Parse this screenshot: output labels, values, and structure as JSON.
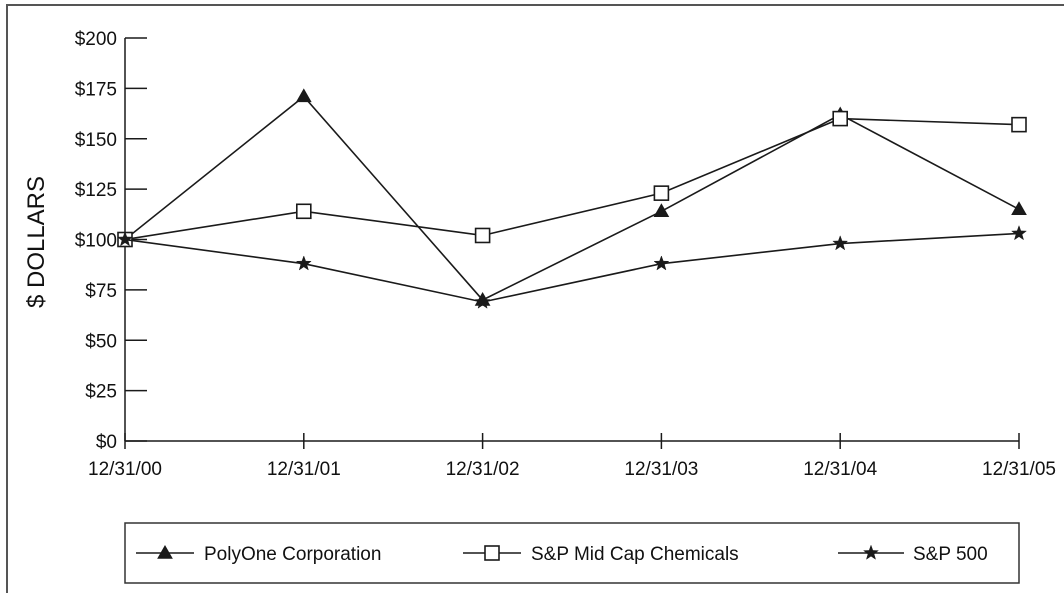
{
  "chart_data": {
    "type": "line",
    "title": "",
    "xlabel": "",
    "ylabel": "$ DOLLARS",
    "categories": [
      "12/31/00",
      "12/31/01",
      "12/31/02",
      "12/31/03",
      "12/31/04",
      "12/31/05"
    ],
    "y_ticks": [
      "$0",
      "$25",
      "$50",
      "$75",
      "$100",
      "$125",
      "$150",
      "$175",
      "$200"
    ],
    "ylim": [
      0,
      200
    ],
    "grid": false,
    "legend_position": "bottom",
    "series": [
      {
        "name": "PolyOne Corporation",
        "marker": "triangle-filled",
        "values": [
          100,
          171,
          70,
          114,
          162,
          115
        ]
      },
      {
        "name": "S&P Mid Cap Chemicals",
        "marker": "square-open",
        "values": [
          100,
          114,
          102,
          123,
          160,
          157
        ]
      },
      {
        "name": "S&P 500",
        "marker": "star-filled",
        "values": [
          100,
          88,
          69,
          88,
          98,
          103
        ]
      }
    ],
    "colors": {
      "line": "#1a1a1a",
      "axis": "#1a1a1a"
    }
  }
}
